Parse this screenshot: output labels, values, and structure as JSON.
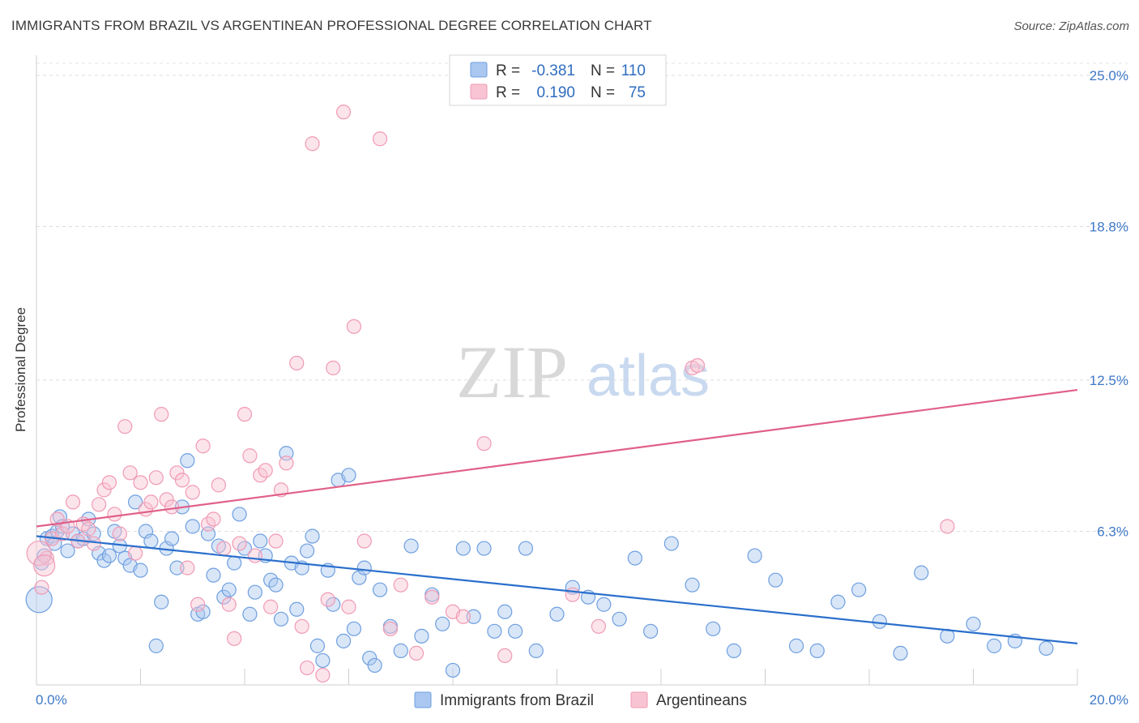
{
  "title": "IMMIGRANTS FROM BRAZIL VS ARGENTINEAN PROFESSIONAL DEGREE CORRELATION CHART",
  "source": "Source: ZipAtlas.com",
  "watermark": {
    "zip": "ZIP",
    "atlas": "atlas"
  },
  "chart_data": {
    "type": "scatter",
    "ylabel": "Professional Degree",
    "xlim": [
      0,
      20
    ],
    "ylim": [
      0,
      25.5
    ],
    "x_tick_labels": [
      "0.0%",
      "20.0%"
    ],
    "y_ticks": [
      6.3,
      12.5,
      18.8,
      25.0
    ],
    "y_tick_labels": [
      "6.3%",
      "12.5%",
      "18.8%",
      "25.0%"
    ],
    "grid": true,
    "legend_position": "bottom",
    "stats_box": [
      {
        "r_label": "R =",
        "r": "-0.381",
        "n_label": "N =",
        "n": "110"
      },
      {
        "r_label": "R =",
        "r": "0.190",
        "n_label": "N =",
        "n": "75"
      }
    ],
    "series": [
      {
        "name": "Immigrants from Brazil",
        "color": "#6f9fe0",
        "fill": "#a9c7f0",
        "line_color": "#2a6fcc",
        "trend": {
          "x": [
            0,
            20
          ],
          "y": [
            6.1,
            1.7
          ]
        },
        "points": [
          [
            0.1,
            5.0
          ],
          [
            0.15,
            5.3
          ],
          [
            0.2,
            6.0
          ],
          [
            0.3,
            6.1
          ],
          [
            0.35,
            5.8
          ],
          [
            0.4,
            6.3
          ],
          [
            0.45,
            6.9
          ],
          [
            0.5,
            6.5
          ],
          [
            0.6,
            5.5
          ],
          [
            0.7,
            6.2
          ],
          [
            0.8,
            5.9
          ],
          [
            0.9,
            6.0
          ],
          [
            1.0,
            6.8
          ],
          [
            1.1,
            6.2
          ],
          [
            1.2,
            5.4
          ],
          [
            1.3,
            5.1
          ],
          [
            1.4,
            5.3
          ],
          [
            1.5,
            6.3
          ],
          [
            1.6,
            5.7
          ],
          [
            1.7,
            5.2
          ],
          [
            1.8,
            4.9
          ],
          [
            1.9,
            7.5
          ],
          [
            2.0,
            4.7
          ],
          [
            2.1,
            6.3
          ],
          [
            2.2,
            5.9
          ],
          [
            2.4,
            3.4
          ],
          [
            2.5,
            5.6
          ],
          [
            2.6,
            6.0
          ],
          [
            2.7,
            4.8
          ],
          [
            2.8,
            7.3
          ],
          [
            2.9,
            9.2
          ],
          [
            3.0,
            6.5
          ],
          [
            3.1,
            2.9
          ],
          [
            3.2,
            3.0
          ],
          [
            3.3,
            6.2
          ],
          [
            3.4,
            4.5
          ],
          [
            3.5,
            5.7
          ],
          [
            3.6,
            3.6
          ],
          [
            3.7,
            3.9
          ],
          [
            3.8,
            5.0
          ],
          [
            3.9,
            7.0
          ],
          [
            4.0,
            5.6
          ],
          [
            4.1,
            2.9
          ],
          [
            4.2,
            3.8
          ],
          [
            4.3,
            5.9
          ],
          [
            4.4,
            5.3
          ],
          [
            4.5,
            4.3
          ],
          [
            4.6,
            4.1
          ],
          [
            4.7,
            2.7
          ],
          [
            4.8,
            9.5
          ],
          [
            4.9,
            5.0
          ],
          [
            5.0,
            3.1
          ],
          [
            5.1,
            4.8
          ],
          [
            5.2,
            5.5
          ],
          [
            5.3,
            6.1
          ],
          [
            5.4,
            1.6
          ],
          [
            5.5,
            1.0
          ],
          [
            5.6,
            4.7
          ],
          [
            5.7,
            3.3
          ],
          [
            5.8,
            8.4
          ],
          [
            5.9,
            1.8
          ],
          [
            6.0,
            8.6
          ],
          [
            6.1,
            2.3
          ],
          [
            6.2,
            4.4
          ],
          [
            6.3,
            4.8
          ],
          [
            6.4,
            1.1
          ],
          [
            6.5,
            0.8
          ],
          [
            6.6,
            3.9
          ],
          [
            6.8,
            2.4
          ],
          [
            7.0,
            1.4
          ],
          [
            7.2,
            5.7
          ],
          [
            7.4,
            2.0
          ],
          [
            7.6,
            3.7
          ],
          [
            7.8,
            2.5
          ],
          [
            8.0,
            0.6
          ],
          [
            8.2,
            5.6
          ],
          [
            8.4,
            2.8
          ],
          [
            8.6,
            5.6
          ],
          [
            8.8,
            2.2
          ],
          [
            9.0,
            3.0
          ],
          [
            9.2,
            2.2
          ],
          [
            9.4,
            5.6
          ],
          [
            9.6,
            1.4
          ],
          [
            10.0,
            2.9
          ],
          [
            10.3,
            4.0
          ],
          [
            10.6,
            3.6
          ],
          [
            10.9,
            3.3
          ],
          [
            11.2,
            2.7
          ],
          [
            11.5,
            5.2
          ],
          [
            11.8,
            2.2
          ],
          [
            12.2,
            5.8
          ],
          [
            12.6,
            4.1
          ],
          [
            13.0,
            2.3
          ],
          [
            13.4,
            1.4
          ],
          [
            13.8,
            5.3
          ],
          [
            14.2,
            4.3
          ],
          [
            14.6,
            1.6
          ],
          [
            15.0,
            1.4
          ],
          [
            15.4,
            3.4
          ],
          [
            15.8,
            3.9
          ],
          [
            16.2,
            2.6
          ],
          [
            16.6,
            1.3
          ],
          [
            17.0,
            4.6
          ],
          [
            17.5,
            2.0
          ],
          [
            18.0,
            2.5
          ],
          [
            18.4,
            1.6
          ],
          [
            18.8,
            1.8
          ],
          [
            19.4,
            1.5
          ],
          [
            2.3,
            1.6
          ],
          [
            0.05,
            3.5
          ]
        ],
        "sizes": {
          "0.05,3.5": 16,
          "0.1,5.0": 12
        }
      },
      {
        "name": "Argentineans",
        "color": "#f09ab4",
        "fill": "#f8c4d3",
        "line_color": "#e06088",
        "trend": {
          "x": [
            0,
            20
          ],
          "y": [
            6.5,
            12.1
          ]
        },
        "points": [
          [
            0.1,
            4.0
          ],
          [
            0.2,
            5.2
          ],
          [
            0.3,
            6.0
          ],
          [
            0.4,
            6.8
          ],
          [
            0.5,
            6.2
          ],
          [
            0.6,
            6.5
          ],
          [
            0.7,
            7.5
          ],
          [
            0.8,
            5.9
          ],
          [
            0.9,
            6.6
          ],
          [
            1.0,
            6.4
          ],
          [
            1.1,
            5.8
          ],
          [
            1.2,
            7.4
          ],
          [
            1.3,
            8.0
          ],
          [
            1.4,
            8.3
          ],
          [
            1.5,
            7.0
          ],
          [
            1.6,
            6.2
          ],
          [
            1.7,
            10.6
          ],
          [
            1.8,
            8.7
          ],
          [
            1.9,
            5.4
          ],
          [
            2.0,
            8.3
          ],
          [
            2.1,
            7.2
          ],
          [
            2.2,
            7.5
          ],
          [
            2.3,
            8.5
          ],
          [
            2.4,
            11.1
          ],
          [
            2.5,
            7.6
          ],
          [
            2.6,
            7.3
          ],
          [
            2.7,
            8.7
          ],
          [
            2.8,
            8.4
          ],
          [
            2.9,
            4.8
          ],
          [
            3.0,
            7.9
          ],
          [
            3.1,
            3.3
          ],
          [
            3.2,
            9.8
          ],
          [
            3.3,
            6.6
          ],
          [
            3.4,
            6.8
          ],
          [
            3.5,
            8.2
          ],
          [
            3.6,
            5.6
          ],
          [
            3.7,
            3.3
          ],
          [
            3.8,
            1.9
          ],
          [
            3.9,
            5.8
          ],
          [
            4.0,
            11.1
          ],
          [
            4.1,
            9.4
          ],
          [
            4.2,
            5.3
          ],
          [
            4.3,
            8.6
          ],
          [
            4.4,
            8.8
          ],
          [
            4.5,
            3.2
          ],
          [
            4.6,
            5.9
          ],
          [
            4.7,
            8.0
          ],
          [
            4.8,
            9.1
          ],
          [
            5.0,
            13.2
          ],
          [
            5.1,
            2.4
          ],
          [
            5.2,
            0.7
          ],
          [
            5.3,
            22.2
          ],
          [
            5.5,
            0.4
          ],
          [
            5.6,
            3.5
          ],
          [
            5.7,
            13.0
          ],
          [
            5.9,
            23.5
          ],
          [
            6.0,
            3.2
          ],
          [
            6.1,
            14.7
          ],
          [
            6.3,
            5.9
          ],
          [
            6.6,
            22.4
          ],
          [
            6.8,
            2.3
          ],
          [
            7.0,
            4.1
          ],
          [
            7.3,
            1.3
          ],
          [
            7.6,
            3.6
          ],
          [
            8.0,
            3.0
          ],
          [
            8.2,
            2.8
          ],
          [
            8.6,
            9.9
          ],
          [
            9.0,
            1.2
          ],
          [
            10.3,
            3.7
          ],
          [
            10.8,
            2.4
          ],
          [
            12.6,
            13.0
          ],
          [
            12.7,
            13.1
          ],
          [
            17.5,
            6.5
          ],
          [
            0.05,
            5.4
          ],
          [
            0.15,
            4.9
          ]
        ],
        "sizes": {
          "0.05,5.4": 15,
          "0.15,4.9": 13
        }
      }
    ]
  }
}
